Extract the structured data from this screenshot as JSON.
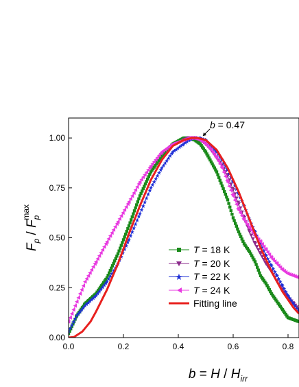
{
  "chart_data": {
    "type": "scatter",
    "xlabel_parts": {
      "b": "b",
      "eq": " = ",
      "H": "H",
      "slash": " / ",
      "Hsub": "H",
      "irr": "irr"
    },
    "ylabel_parts": {
      "F": "F",
      "p": "p",
      "slash": " / ",
      "F2": "F",
      "p2": "p",
      "max": "max"
    },
    "xlim": [
      0.0,
      0.84
    ],
    "ylim": [
      0.0,
      1.1
    ],
    "x_ticks": [
      "0.0",
      "0.2",
      "0.4",
      "0.6",
      "0.8"
    ],
    "x_tick_values": [
      0.0,
      0.2,
      0.4,
      0.6,
      0.8
    ],
    "y_ticks": [
      "0.00",
      "0.25",
      "0.50",
      "0.75",
      "1.00"
    ],
    "y_tick_values": [
      0.0,
      0.25,
      0.5,
      0.75,
      1.0
    ],
    "annotation": {
      "b": "b",
      "text": " = 0.47",
      "x": 0.47,
      "y": 1.0
    },
    "series": [
      {
        "name_T": "T",
        "name_rest": " = 18 K",
        "color": "#1a8a1a",
        "marker": "square",
        "x": [
          0.0,
          0.03,
          0.06,
          0.1,
          0.14,
          0.18,
          0.22,
          0.26,
          0.3,
          0.34,
          0.38,
          0.42,
          0.44,
          0.46,
          0.48,
          0.5,
          0.52,
          0.54,
          0.56,
          0.58,
          0.6,
          0.62,
          0.64,
          0.66,
          0.68,
          0.7,
          0.72,
          0.74,
          0.76,
          0.78,
          0.8,
          0.82,
          0.84
        ],
        "y": [
          0.02,
          0.11,
          0.17,
          0.22,
          0.3,
          0.42,
          0.56,
          0.71,
          0.83,
          0.91,
          0.97,
          1.0,
          1.0,
          0.99,
          0.97,
          0.93,
          0.88,
          0.83,
          0.76,
          0.69,
          0.6,
          0.53,
          0.47,
          0.43,
          0.38,
          0.31,
          0.27,
          0.22,
          0.18,
          0.14,
          0.1,
          0.09,
          0.08
        ]
      },
      {
        "name_T": "T",
        "name_rest": " = 20 K",
        "color": "#8b2a8b",
        "marker": "triangle-down",
        "x": [
          0.42,
          0.44,
          0.46,
          0.48,
          0.5,
          0.52,
          0.54,
          0.56,
          0.58,
          0.6,
          0.62,
          0.64,
          0.66,
          0.68,
          0.7,
          0.72,
          0.74,
          0.76,
          0.78,
          0.8,
          0.82,
          0.84
        ],
        "y": [
          0.99,
          1.0,
          1.0,
          0.99,
          0.97,
          0.94,
          0.9,
          0.86,
          0.81,
          0.74,
          0.67,
          0.6,
          0.53,
          0.47,
          0.42,
          0.37,
          0.33,
          0.28,
          0.24,
          0.2,
          0.17,
          0.14
        ]
      },
      {
        "name_T": "T",
        "name_rest": " = 22 K",
        "color": "#1e2fd6",
        "marker": "star",
        "x": [
          0.0,
          0.03,
          0.06,
          0.1,
          0.14,
          0.18,
          0.22,
          0.26,
          0.3,
          0.34,
          0.38,
          0.42,
          0.44,
          0.46,
          0.48,
          0.5,
          0.52,
          0.54,
          0.56,
          0.58,
          0.6,
          0.62,
          0.64,
          0.66,
          0.68,
          0.7,
          0.72,
          0.74,
          0.76,
          0.78,
          0.8,
          0.82,
          0.84
        ],
        "y": [
          0.03,
          0.11,
          0.16,
          0.21,
          0.28,
          0.37,
          0.49,
          0.62,
          0.75,
          0.85,
          0.93,
          0.97,
          0.99,
          1.0,
          1.0,
          0.99,
          0.96,
          0.93,
          0.89,
          0.84,
          0.78,
          0.72,
          0.66,
          0.59,
          0.53,
          0.47,
          0.41,
          0.36,
          0.31,
          0.26,
          0.21,
          0.17,
          0.13
        ]
      },
      {
        "name_T": "T",
        "name_rest": " = 24 K",
        "color": "#e83ae0",
        "marker": "triangle-left",
        "x": [
          0.0,
          0.03,
          0.06,
          0.1,
          0.14,
          0.18,
          0.22,
          0.26,
          0.3,
          0.34,
          0.38,
          0.42,
          0.44,
          0.46,
          0.48,
          0.5,
          0.52,
          0.54,
          0.56,
          0.58,
          0.6,
          0.62,
          0.64,
          0.66,
          0.68,
          0.7,
          0.72,
          0.74,
          0.76,
          0.78,
          0.8,
          0.82,
          0.84
        ],
        "y": [
          0.08,
          0.18,
          0.28,
          0.38,
          0.48,
          0.58,
          0.68,
          0.78,
          0.86,
          0.93,
          0.97,
          0.99,
          1.0,
          1.0,
          0.99,
          0.97,
          0.94,
          0.9,
          0.85,
          0.78,
          0.71,
          0.64,
          0.59,
          0.55,
          0.51,
          0.48,
          0.44,
          0.4,
          0.37,
          0.34,
          0.32,
          0.31,
          0.3
        ]
      },
      {
        "name": "Fitting line",
        "color": "#e8201e",
        "marker": "line",
        "x": [
          0.0,
          0.02,
          0.05,
          0.08,
          0.1,
          0.14,
          0.18,
          0.22,
          0.26,
          0.3,
          0.34,
          0.38,
          0.42,
          0.45,
          0.47,
          0.5,
          0.54,
          0.58,
          0.62,
          0.66,
          0.7,
          0.74,
          0.78,
          0.82,
          0.84
        ],
        "y": [
          0.0,
          0.003,
          0.03,
          0.08,
          0.13,
          0.24,
          0.37,
          0.52,
          0.66,
          0.79,
          0.89,
          0.96,
          0.99,
          1.0,
          1.0,
          0.99,
          0.94,
          0.85,
          0.73,
          0.59,
          0.45,
          0.33,
          0.23,
          0.15,
          0.12
        ]
      }
    ]
  }
}
